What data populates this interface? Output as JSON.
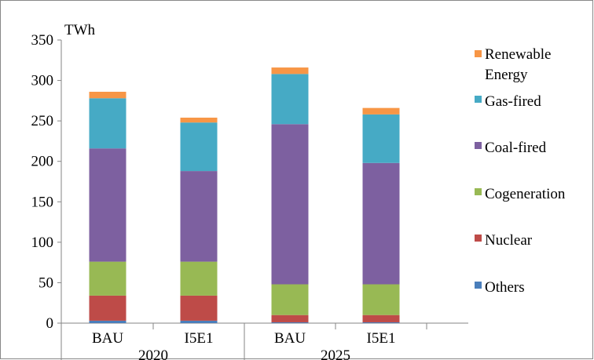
{
  "chart_data": {
    "type": "bar",
    "stacked": true,
    "unit_label": "TWh",
    "categories": [
      "BAU",
      "I5E1",
      "BAU",
      "I5E1"
    ],
    "groups": [
      {
        "label": "2020",
        "categories": [
          "BAU",
          "I5E1"
        ]
      },
      {
        "label": "2025",
        "categories": [
          "BAU",
          "I5E1"
        ]
      }
    ],
    "ylim": [
      0,
      350
    ],
    "yticks": [
      0,
      50,
      100,
      150,
      200,
      250,
      300,
      350
    ],
    "grid": false,
    "legend_position": "right",
    "series": [
      {
        "name": "Others",
        "color": "#4a7ebb",
        "values": [
          3,
          3,
          1,
          1
        ]
      },
      {
        "name": "Nuclear",
        "color": "#be4b48",
        "values": [
          31,
          31,
          9,
          9
        ]
      },
      {
        "name": "Cogeneration",
        "color": "#98b954",
        "values": [
          42,
          42,
          38,
          38
        ]
      },
      {
        "name": "Coal-fired",
        "color": "#7d60a0",
        "values": [
          140,
          112,
          198,
          150
        ]
      },
      {
        "name": "Gas-fired",
        "color": "#46aac5",
        "values": [
          62,
          60,
          62,
          60
        ]
      },
      {
        "name": "Renewable Energy",
        "color": "#f79646",
        "values": [
          8,
          6,
          8,
          8
        ]
      }
    ]
  }
}
